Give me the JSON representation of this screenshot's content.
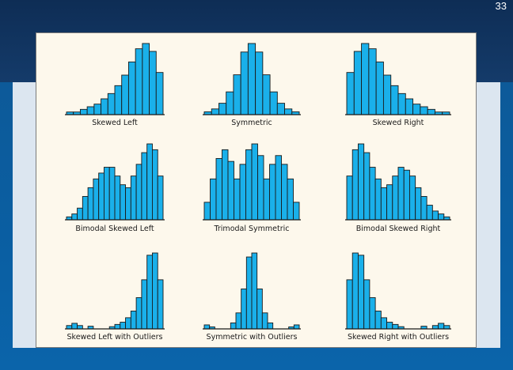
{
  "slide": {
    "number": "33"
  },
  "chart_data": [
    {
      "type": "bar",
      "title": "Skewed Left",
      "values": [
        1,
        1,
        2,
        3,
        4,
        6,
        8,
        11,
        15,
        20,
        25,
        27,
        24,
        16
      ]
    },
    {
      "type": "bar",
      "title": "Symmetric",
      "values": [
        1,
        2,
        4,
        8,
        14,
        22,
        25,
        22,
        14,
        8,
        4,
        2,
        1
      ]
    },
    {
      "type": "bar",
      "title": "Skewed Right",
      "values": [
        16,
        24,
        27,
        25,
        20,
        15,
        11,
        8,
        6,
        4,
        3,
        2,
        1,
        1
      ]
    },
    {
      "type": "bar",
      "title": "Bimodal Skewed Left",
      "values": [
        1,
        2,
        4,
        8,
        11,
        14,
        16,
        18,
        18,
        15,
        12,
        11,
        15,
        19,
        23,
        26,
        24,
        15
      ]
    },
    {
      "type": "bar",
      "title": "Trimodal Symmetric",
      "values": [
        6,
        14,
        21,
        24,
        20,
        14,
        19,
        24,
        26,
        22,
        14,
        19,
        22,
        19,
        14,
        6
      ]
    },
    {
      "type": "bar",
      "title": "Bimodal Skewed Right",
      "values": [
        15,
        24,
        26,
        23,
        18,
        14,
        11,
        12,
        15,
        18,
        17,
        15,
        11,
        8,
        5,
        3,
        2,
        1
      ]
    },
    {
      "type": "bar",
      "title": "Skewed Left with Outliers",
      "values": [
        1.5,
        2.5,
        1.5,
        0,
        1.2,
        0,
        0,
        0,
        1,
        2,
        3,
        5,
        8,
        14,
        22,
        33,
        34,
        22
      ]
    },
    {
      "type": "bar",
      "title": "Symmetric with Outliers",
      "values": [
        2,
        1,
        0,
        0,
        0,
        3,
        8,
        20,
        36,
        38,
        20,
        8,
        3,
        0,
        0,
        0,
        1,
        2
      ]
    },
    {
      "type": "bar",
      "title": "Skewed Right with Outliers",
      "values": [
        22,
        34,
        33,
        22,
        14,
        8,
        5,
        3,
        2,
        1,
        0,
        0,
        0,
        1.2,
        0,
        1.5,
        2.5,
        1.5
      ]
    }
  ]
}
